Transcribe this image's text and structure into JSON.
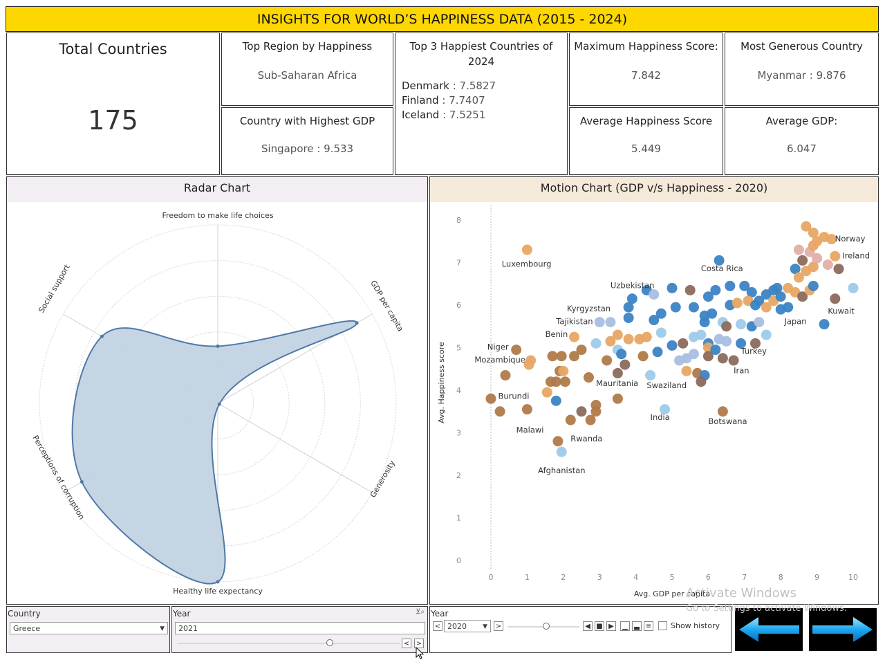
{
  "title": "INSIGHTS FOR WORLD’S HAPPINESS DATA (2015 - 2024)",
  "kpis": {
    "total_countries": {
      "label": "Total Countries",
      "value": "175"
    },
    "top_region": {
      "label": "Top Region by Happiness",
      "value": "Sub-Saharan Africa"
    },
    "highest_gdp": {
      "label": "Country with Highest GDP",
      "value": "Singapore : 9.533"
    },
    "top3": {
      "label": "Top 3 Happiest Countries of 2024",
      "items": [
        {
          "country": "Denmark",
          "score": " : 7.5827"
        },
        {
          "country": "Finland",
          "score": " : 7.7407"
        },
        {
          "country": "Iceland",
          "score": " : 7.5251"
        }
      ]
    },
    "max_happiness": {
      "label": "Maximum Happiness Score:",
      "value": "7.842"
    },
    "avg_happiness": {
      "label": "Average Happiness Score",
      "value": "5.449"
    },
    "most_generous": {
      "label": "Most Generous Country",
      "value": "Myanmar :  9.876"
    },
    "avg_gdp": {
      "label": "Average GDP:",
      "value": "6.047"
    }
  },
  "chart_data": [
    {
      "type": "radar",
      "title": "Radar Chart",
      "axes": [
        "Freedom to make life choices",
        "GDP per capita",
        "Generosity",
        "Healthy life expectancy",
        "Perceptions of corruption",
        "Social support"
      ],
      "values": [
        0.32,
        0.9,
        0.0,
        1.0,
        0.88,
        0.75
      ],
      "range": [
        0,
        1
      ],
      "fill_color": "#c3d3e3",
      "stroke_color": "#4e79a7"
    },
    {
      "type": "scatter",
      "title": "Motion Chart (GDP v/s Happiness - 2020)",
      "xlabel": "Avg. GDP per capita",
      "ylabel": "Avg. Happiness score",
      "xlim": [
        0,
        10
      ],
      "ylim": [
        0,
        8
      ],
      "xticks": [
        "0",
        "1",
        "2",
        "3",
        "4",
        "5",
        "6",
        "7",
        "8",
        "9",
        "10"
      ],
      "yticks": [
        "0",
        "1",
        "2",
        "3",
        "4",
        "5",
        "6",
        "7",
        "8"
      ],
      "palette": {
        "orange": "#e8a664",
        "brown": "#b07a4a",
        "grey_brown": "#8c6a5c",
        "blue": "#3b84c4",
        "light_blue": "#9dcbea",
        "pale_blue": "#a9bfe0",
        "pink": "#e0b0a8"
      },
      "labels": [
        {
          "text": "Norway",
          "x": 9.5,
          "y": 7.5
        },
        {
          "text": "Ireland",
          "x": 9.7,
          "y": 7.1
        },
        {
          "text": "Luxembourg",
          "x": 0.3,
          "y": 6.9
        },
        {
          "text": "Costa Rica",
          "x": 5.8,
          "y": 6.8
        },
        {
          "text": "Uzbekistan",
          "x": 3.3,
          "y": 6.4
        },
        {
          "text": "Kyrgyzstan",
          "x": 2.1,
          "y": 5.85
        },
        {
          "text": "Tajikistan",
          "x": 1.8,
          "y": 5.55
        },
        {
          "text": "Kuwait",
          "x": 9.3,
          "y": 5.8
        },
        {
          "text": "Japan",
          "x": 8.1,
          "y": 5.55
        },
        {
          "text": "Benin",
          "x": 1.5,
          "y": 5.25
        },
        {
          "text": "Niger",
          "x": -0.1,
          "y": 4.95
        },
        {
          "text": "Mozambique",
          "x": -0.45,
          "y": 4.65
        },
        {
          "text": "Turkey",
          "x": 6.9,
          "y": 4.85
        },
        {
          "text": "Iran",
          "x": 6.7,
          "y": 4.4
        },
        {
          "text": "Mauritania",
          "x": 2.9,
          "y": 4.1
        },
        {
          "text": "Swaziland",
          "x": 4.3,
          "y": 4.05
        },
        {
          "text": "Burundi",
          "x": 0.2,
          "y": 3.8
        },
        {
          "text": "Malawi",
          "x": 0.7,
          "y": 3.0
        },
        {
          "text": "India",
          "x": 4.4,
          "y": 3.3
        },
        {
          "text": "Botswana",
          "x": 6.0,
          "y": 3.2
        },
        {
          "text": "Rwanda",
          "x": 2.2,
          "y": 2.8
        },
        {
          "text": "Afghanistan",
          "x": 1.3,
          "y": 2.05
        }
      ],
      "points": [
        {
          "x": 1.0,
          "y": 7.3,
          "c": "orange"
        },
        {
          "x": 8.7,
          "y": 7.85,
          "c": "orange"
        },
        {
          "x": 8.9,
          "y": 7.7,
          "c": "orange"
        },
        {
          "x": 9.0,
          "y": 7.5,
          "c": "orange"
        },
        {
          "x": 9.2,
          "y": 7.6,
          "c": "orange"
        },
        {
          "x": 9.4,
          "y": 7.55,
          "c": "orange"
        },
        {
          "x": 9.5,
          "y": 7.15,
          "c": "orange"
        },
        {
          "x": 8.5,
          "y": 7.3,
          "c": "pink"
        },
        {
          "x": 8.8,
          "y": 7.25,
          "c": "pink"
        },
        {
          "x": 8.6,
          "y": 7.05,
          "c": "grey_brown"
        },
        {
          "x": 8.9,
          "y": 7.4,
          "c": "orange"
        },
        {
          "x": 9.3,
          "y": 6.95,
          "c": "pink"
        },
        {
          "x": 9.6,
          "y": 6.85,
          "c": "grey_brown"
        },
        {
          "x": 10.0,
          "y": 6.4,
          "c": "light_blue"
        },
        {
          "x": 8.4,
          "y": 6.85,
          "c": "blue"
        },
        {
          "x": 8.5,
          "y": 6.65,
          "c": "orange"
        },
        {
          "x": 8.7,
          "y": 6.8,
          "c": "orange"
        },
        {
          "x": 8.9,
          "y": 6.9,
          "c": "orange"
        },
        {
          "x": 9.0,
          "y": 7.1,
          "c": "pink"
        },
        {
          "x": 8.2,
          "y": 6.4,
          "c": "orange"
        },
        {
          "x": 8.4,
          "y": 6.3,
          "c": "orange"
        },
        {
          "x": 8.6,
          "y": 6.2,
          "c": "grey_brown"
        },
        {
          "x": 8.8,
          "y": 6.35,
          "c": "orange"
        },
        {
          "x": 8.9,
          "y": 6.45,
          "c": "blue"
        },
        {
          "x": 9.5,
          "y": 6.15,
          "c": "grey_brown"
        },
        {
          "x": 8.0,
          "y": 5.9,
          "c": "blue"
        },
        {
          "x": 8.2,
          "y": 5.95,
          "c": "blue"
        },
        {
          "x": 9.2,
          "y": 5.55,
          "c": "blue"
        },
        {
          "x": 6.3,
          "y": 7.05,
          "c": "blue"
        },
        {
          "x": 4.3,
          "y": 6.35,
          "c": "blue"
        },
        {
          "x": 5.0,
          "y": 6.4,
          "c": "blue"
        },
        {
          "x": 5.5,
          "y": 6.35,
          "c": "grey_brown"
        },
        {
          "x": 6.2,
          "y": 6.35,
          "c": "blue"
        },
        {
          "x": 6.6,
          "y": 6.45,
          "c": "blue"
        },
        {
          "x": 7.0,
          "y": 6.45,
          "c": "blue"
        },
        {
          "x": 7.2,
          "y": 6.3,
          "c": "blue"
        },
        {
          "x": 7.4,
          "y": 6.1,
          "c": "blue"
        },
        {
          "x": 7.6,
          "y": 6.25,
          "c": "blue"
        },
        {
          "x": 7.8,
          "y": 6.35,
          "c": "blue"
        },
        {
          "x": 7.9,
          "y": 6.4,
          "c": "blue"
        },
        {
          "x": 3.9,
          "y": 6.15,
          "c": "blue"
        },
        {
          "x": 3.8,
          "y": 5.95,
          "c": "blue"
        },
        {
          "x": 4.5,
          "y": 6.25,
          "c": "pale_blue"
        },
        {
          "x": 5.1,
          "y": 5.95,
          "c": "blue"
        },
        {
          "x": 5.6,
          "y": 5.95,
          "c": "blue"
        },
        {
          "x": 6.0,
          "y": 6.2,
          "c": "blue"
        },
        {
          "x": 6.6,
          "y": 6.0,
          "c": "blue"
        },
        {
          "x": 6.8,
          "y": 6.05,
          "c": "orange"
        },
        {
          "x": 7.1,
          "y": 6.1,
          "c": "orange"
        },
        {
          "x": 7.3,
          "y": 6.0,
          "c": "blue"
        },
        {
          "x": 7.6,
          "y": 5.95,
          "c": "orange"
        },
        {
          "x": 7.8,
          "y": 6.1,
          "c": "orange"
        },
        {
          "x": 8.0,
          "y": 6.2,
          "c": "blue"
        },
        {
          "x": 4.7,
          "y": 5.8,
          "c": "blue"
        },
        {
          "x": 4.5,
          "y": 5.65,
          "c": "blue"
        },
        {
          "x": 3.8,
          "y": 5.7,
          "c": "blue"
        },
        {
          "x": 5.9,
          "y": 5.75,
          "c": "blue"
        },
        {
          "x": 6.1,
          "y": 5.8,
          "c": "blue"
        },
        {
          "x": 6.4,
          "y": 5.6,
          "c": "light_blue"
        },
        {
          "x": 6.5,
          "y": 5.5,
          "c": "grey_brown"
        },
        {
          "x": 6.9,
          "y": 5.55,
          "c": "light_blue"
        },
        {
          "x": 7.2,
          "y": 5.5,
          "c": "blue"
        },
        {
          "x": 7.4,
          "y": 5.6,
          "c": "pale_blue"
        },
        {
          "x": 7.6,
          "y": 5.3,
          "c": "light_blue"
        },
        {
          "x": 5.9,
          "y": 5.6,
          "c": "blue"
        },
        {
          "x": 3.0,
          "y": 5.6,
          "c": "pale_blue"
        },
        {
          "x": 3.3,
          "y": 5.6,
          "c": "pale_blue"
        },
        {
          "x": 4.7,
          "y": 5.35,
          "c": "light_blue"
        },
        {
          "x": 5.6,
          "y": 5.25,
          "c": "light_blue"
        },
        {
          "x": 5.8,
          "y": 5.3,
          "c": "light_blue"
        },
        {
          "x": 6.0,
          "y": 5.1,
          "c": "blue"
        },
        {
          "x": 6.3,
          "y": 5.2,
          "c": "pale_blue"
        },
        {
          "x": 6.5,
          "y": 5.15,
          "c": "pale_blue"
        },
        {
          "x": 6.9,
          "y": 5.1,
          "c": "blue"
        },
        {
          "x": 7.3,
          "y": 5.1,
          "c": "grey_brown"
        },
        {
          "x": 2.9,
          "y": 5.1,
          "c": "light_blue"
        },
        {
          "x": 3.5,
          "y": 4.95,
          "c": "light_blue"
        },
        {
          "x": 3.6,
          "y": 4.85,
          "c": "blue"
        },
        {
          "x": 4.6,
          "y": 4.9,
          "c": "blue"
        },
        {
          "x": 5.0,
          "y": 5.05,
          "c": "blue"
        },
        {
          "x": 5.3,
          "y": 5.1,
          "c": "grey_brown"
        },
        {
          "x": 6.0,
          "y": 5.0,
          "c": "orange"
        },
        {
          "x": 6.2,
          "y": 4.95,
          "c": "blue"
        },
        {
          "x": 5.6,
          "y": 4.85,
          "c": "pale_blue"
        },
        {
          "x": 5.4,
          "y": 4.75,
          "c": "pale_blue"
        },
        {
          "x": 5.2,
          "y": 4.7,
          "c": "pale_blue"
        },
        {
          "x": 6.0,
          "y": 4.8,
          "c": "grey_brown"
        },
        {
          "x": 6.4,
          "y": 4.75,
          "c": "grey_brown"
        },
        {
          "x": 6.7,
          "y": 4.7,
          "c": "grey_brown"
        },
        {
          "x": 2.3,
          "y": 5.25,
          "c": "orange"
        },
        {
          "x": 3.3,
          "y": 5.15,
          "c": "orange"
        },
        {
          "x": 3.5,
          "y": 5.3,
          "c": "orange"
        },
        {
          "x": 3.8,
          "y": 5.2,
          "c": "orange"
        },
        {
          "x": 4.1,
          "y": 5.2,
          "c": "orange"
        },
        {
          "x": 4.3,
          "y": 5.25,
          "c": "orange"
        },
        {
          "x": 0.7,
          "y": 4.95,
          "c": "brown"
        },
        {
          "x": 1.1,
          "y": 4.7,
          "c": "orange"
        },
        {
          "x": 1.05,
          "y": 4.6,
          "c": "orange"
        },
        {
          "x": 1.7,
          "y": 4.8,
          "c": "brown"
        },
        {
          "x": 1.95,
          "y": 4.8,
          "c": "brown"
        },
        {
          "x": 2.3,
          "y": 4.8,
          "c": "brown"
        },
        {
          "x": 2.5,
          "y": 4.95,
          "c": "brown"
        },
        {
          "x": 3.2,
          "y": 4.7,
          "c": "brown"
        },
        {
          "x": 3.7,
          "y": 4.6,
          "c": "grey_brown"
        },
        {
          "x": 4.2,
          "y": 4.8,
          "c": "brown"
        },
        {
          "x": 0.4,
          "y": 4.35,
          "c": "brown"
        },
        {
          "x": 1.9,
          "y": 4.45,
          "c": "brown"
        },
        {
          "x": 2.0,
          "y": 4.45,
          "c": "orange"
        },
        {
          "x": 1.65,
          "y": 4.2,
          "c": "brown"
        },
        {
          "x": 1.8,
          "y": 4.2,
          "c": "brown"
        },
        {
          "x": 2.05,
          "y": 4.2,
          "c": "brown"
        },
        {
          "x": 2.7,
          "y": 4.3,
          "c": "brown"
        },
        {
          "x": 3.5,
          "y": 4.4,
          "c": "grey_brown"
        },
        {
          "x": 5.4,
          "y": 4.45,
          "c": "orange"
        },
        {
          "x": 5.7,
          "y": 4.4,
          "c": "brown"
        },
        {
          "x": 5.9,
          "y": 4.35,
          "c": "blue"
        },
        {
          "x": 4.4,
          "y": 4.35,
          "c": "light_blue"
        },
        {
          "x": 1.55,
          "y": 3.95,
          "c": "orange"
        },
        {
          "x": 5.8,
          "y": 4.2,
          "c": "grey_brown"
        },
        {
          "x": 0.0,
          "y": 3.8,
          "c": "brown"
        },
        {
          "x": 1.8,
          "y": 3.75,
          "c": "blue"
        },
        {
          "x": 3.5,
          "y": 3.8,
          "c": "brown"
        },
        {
          "x": 2.9,
          "y": 3.65,
          "c": "brown"
        },
        {
          "x": 2.5,
          "y": 3.5,
          "c": "grey_brown"
        },
        {
          "x": 2.9,
          "y": 3.5,
          "c": "brown"
        },
        {
          "x": 0.25,
          "y": 3.5,
          "c": "brown"
        },
        {
          "x": 1.0,
          "y": 3.55,
          "c": "brown"
        },
        {
          "x": 2.2,
          "y": 3.3,
          "c": "brown"
        },
        {
          "x": 2.75,
          "y": 3.3,
          "c": "brown"
        },
        {
          "x": 4.8,
          "y": 3.55,
          "c": "light_blue"
        },
        {
          "x": 6.4,
          "y": 3.5,
          "c": "brown"
        },
        {
          "x": 1.85,
          "y": 2.8,
          "c": "brown"
        },
        {
          "x": 1.95,
          "y": 2.55,
          "c": "light_blue"
        }
      ]
    }
  ],
  "filters": {
    "country": {
      "label": "Country",
      "value": "Greece"
    },
    "year": {
      "label": "Year",
      "value": "2021"
    },
    "motion_year": {
      "label": "Year",
      "value": "2020",
      "show_history": "Show history"
    }
  },
  "watermark": {
    "line1": "Activate Windows",
    "line2": "Go to Settings to activate Windows."
  }
}
